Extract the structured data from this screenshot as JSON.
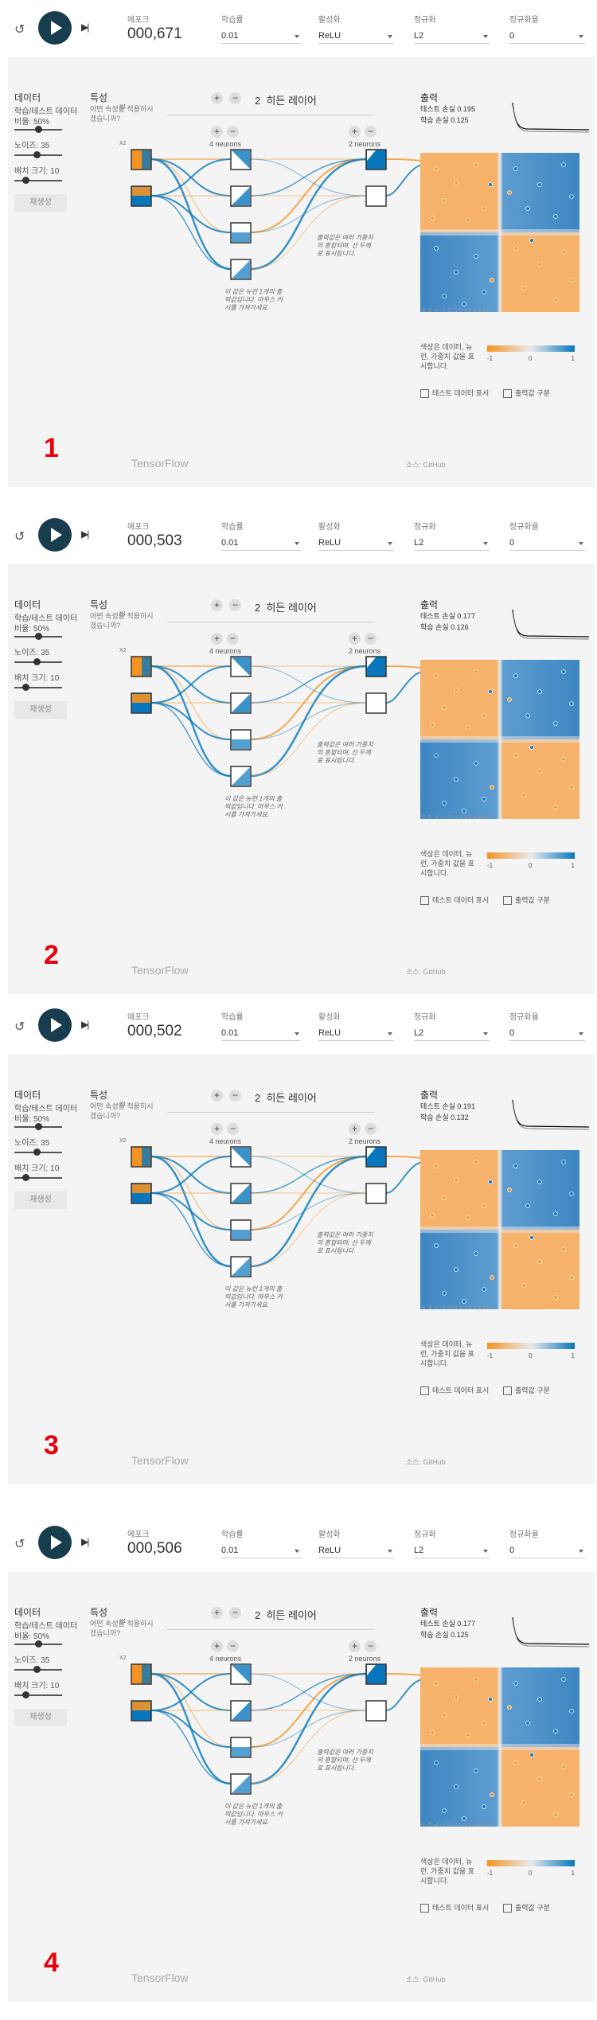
{
  "controls": {
    "reset_icon": "↺",
    "step_icon": "▶|"
  },
  "labels": {
    "epoch": "에포크",
    "lr": "학습률",
    "activation": "활성화",
    "regularization": "정규화",
    "reg_rate": "정규화율",
    "data": "데이터",
    "ratio": "학습/테스트 데이터 비율:",
    "noise": "노이즈:",
    "batch": "배치 크기:",
    "regenerate": "재생성",
    "features": "특성",
    "features_q": "어떤 속성을 적용하시겠습니까?",
    "hidden_layers": "히든 레이어",
    "neurons4": "4 neurons",
    "neurons2": "2 neurons",
    "output": "출력",
    "test_loss": "테스트 손실",
    "train_loss": "학습 손실",
    "legend_text": "색상은 데이터, 뉴런, 가중치 값을 표시합니다.",
    "show_test": "테스트 데이터 표시",
    "discretize": "출력값 구분",
    "ann_out": "출력값은 여러 가중치의 혼합되며, 선 두께로 표시됩니다.",
    "ann_neuron": "이 값은 뉴런 1개의 출력값입니다. 마우스 커서를 가져가세요.",
    "brand": "TensorFlow",
    "source": "소스: GitHub",
    "x1": "X1",
    "x2": "X2"
  },
  "settings": {
    "lr": "0.01",
    "activation": "ReLU",
    "regularization": "L2",
    "reg_rate": "0",
    "ratio_val": "50%",
    "noise_val": "35",
    "batch_val": "10",
    "hidden_count": "2"
  },
  "axis": {
    "ticks": "-6 -5 -4 -3 -2 -1 0 1 2 3 4 5 6",
    "legend_ticks": [
      "-1",
      "0",
      "1"
    ]
  },
  "colors": {
    "orange": "#f59322",
    "blue": "#0877bd",
    "dark": "#183d4e"
  },
  "panels": [
    {
      "label": "1",
      "epoch": "000,671",
      "test_loss": "0.195",
      "train_loss": "0.125"
    },
    {
      "label": "2",
      "epoch": "000,503",
      "test_loss": "0.177",
      "train_loss": "0.126"
    },
    {
      "label": "3",
      "epoch": "000,502",
      "test_loss": "0.191",
      "train_loss": "0.132"
    },
    {
      "label": "4",
      "epoch": "000,506",
      "test_loss": "0.177",
      "train_loss": "0.125"
    }
  ]
}
